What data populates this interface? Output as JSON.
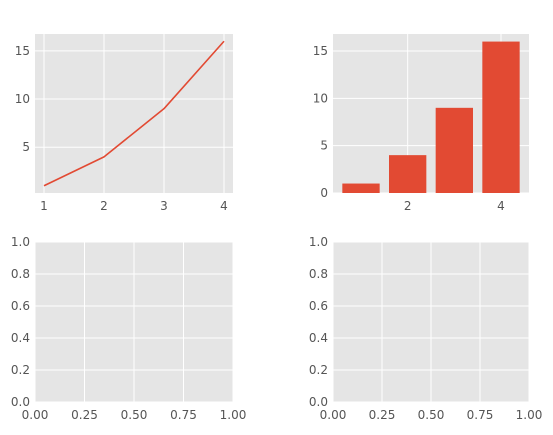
{
  "colors": {
    "background": "#ffffff",
    "axes_face": "#e5e5e5",
    "grid": "#ffffff",
    "tick_label": "#555555",
    "series": "#e24a33"
  },
  "chart_data": [
    {
      "panel": "top-left",
      "type": "line",
      "x": [
        1,
        2,
        3,
        4
      ],
      "y": [
        1,
        4,
        9,
        16
      ],
      "xlim": [
        0.85,
        4.15
      ],
      "ylim": [
        0.25,
        16.75
      ],
      "xticks": [
        1,
        2,
        3,
        4
      ],
      "yticks": [
        5,
        10,
        15
      ],
      "grid": true
    },
    {
      "panel": "top-right",
      "type": "bar",
      "x": [
        1,
        2,
        3,
        4
      ],
      "values": [
        1,
        4,
        9,
        16
      ],
      "xlim": [
        0.4,
        4.6
      ],
      "ylim": [
        0,
        16.8
      ],
      "xticks": [
        2,
        4
      ],
      "yticks": [
        0,
        5,
        10,
        15
      ],
      "grid": true
    },
    {
      "panel": "bottom-left",
      "type": "empty",
      "xlim": [
        0,
        1
      ],
      "ylim": [
        0,
        1
      ],
      "xticks": [
        "0.00",
        "0.25",
        "0.50",
        "0.75",
        "1.00"
      ],
      "yticks": [
        "0.0",
        "0.2",
        "0.4",
        "0.6",
        "0.8",
        "1.0"
      ],
      "grid": true
    },
    {
      "panel": "bottom-right",
      "type": "empty",
      "xlim": [
        0,
        1
      ],
      "ylim": [
        0,
        1
      ],
      "xticks": [
        "0.00",
        "0.25",
        "0.50",
        "0.75",
        "1.00"
      ],
      "yticks": [
        "0.0",
        "0.2",
        "0.4",
        "0.6",
        "0.8",
        "1.0"
      ],
      "grid": true
    }
  ]
}
